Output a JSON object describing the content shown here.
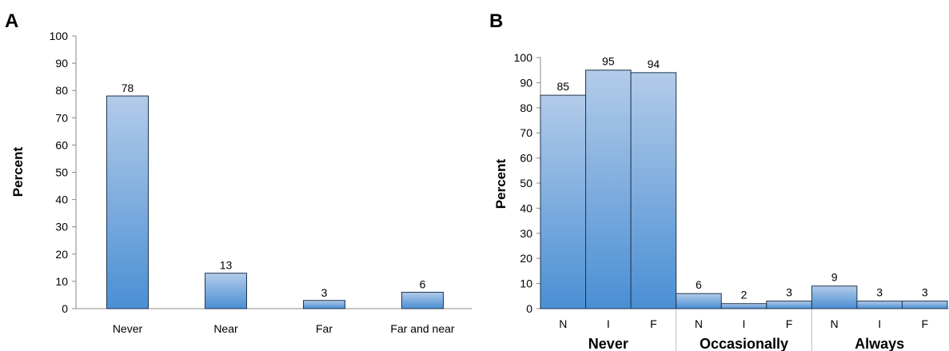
{
  "colors": {
    "bar_top": "#b3cbe9",
    "bar_bottom": "#4a8fd4",
    "bar_stroke": "#1f3550",
    "axis": "#888888"
  },
  "chart_data": [
    {
      "panel": "A",
      "type": "bar",
      "ylabel": "Percent",
      "ylim": [
        0,
        100
      ],
      "yticks": [
        0,
        10,
        20,
        30,
        40,
        50,
        60,
        70,
        80,
        90,
        100
      ],
      "categories": [
        "Never",
        "Near",
        "Far",
        "Far and near"
      ],
      "values": [
        78,
        13,
        3,
        6
      ],
      "data_labels": [
        "78",
        "13",
        "3",
        "6"
      ],
      "grid": false
    },
    {
      "panel": "B",
      "type": "bar",
      "ylabel": "Percent",
      "ylim": [
        0,
        100
      ],
      "yticks": [
        0,
        10,
        20,
        30,
        40,
        50,
        60,
        70,
        80,
        90,
        100
      ],
      "groups": [
        {
          "name": "Never",
          "categories": [
            "N",
            "I",
            "F"
          ],
          "values": [
            85,
            95,
            94
          ],
          "data_labels": [
            "85",
            "95",
            "94"
          ]
        },
        {
          "name": "Occasionally",
          "categories": [
            "N",
            "I",
            "F"
          ],
          "values": [
            6,
            2,
            3
          ],
          "data_labels": [
            "6",
            "2",
            "3"
          ]
        },
        {
          "name": "Always",
          "categories": [
            "N",
            "I",
            "F"
          ],
          "values": [
            9,
            3,
            3
          ],
          "data_labels": [
            "9",
            "3",
            "3"
          ]
        }
      ],
      "grid": false
    }
  ]
}
